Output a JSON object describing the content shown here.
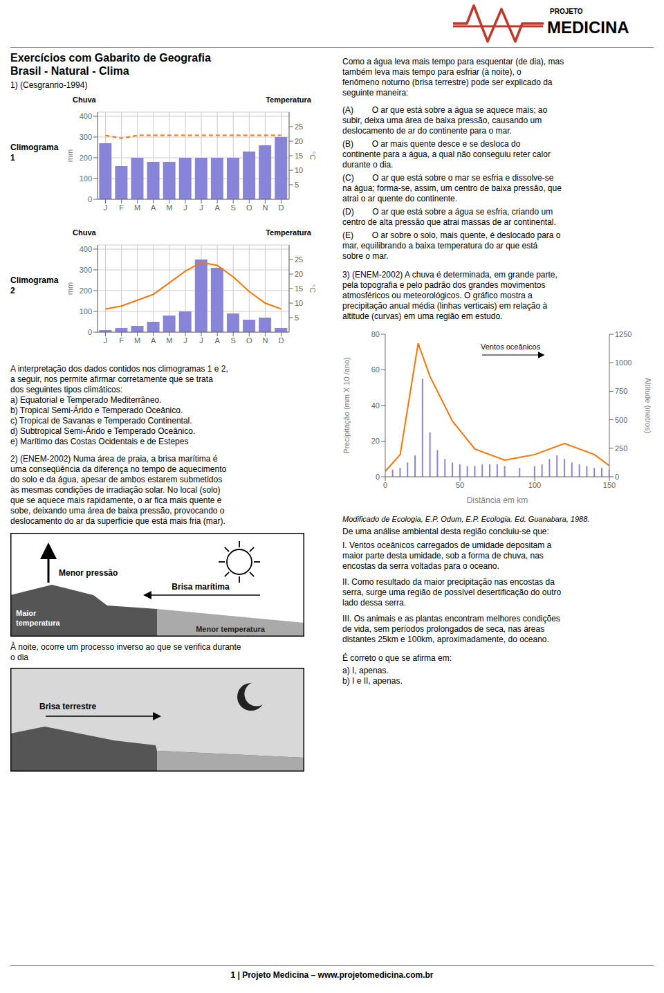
{
  "title": [
    "Exercícios com Gabarito de Geografia",
    "Brasil - Natural - Clima"
  ],
  "chart_data": [
    {
      "type": "bar",
      "title": "Climograma\n1",
      "categories": [
        "J",
        "F",
        "M",
        "A",
        "M",
        "J",
        "J",
        "A",
        "S",
        "O",
        "N",
        "D"
      ],
      "series": [
        {
          "name": "Chuva",
          "type": "bar",
          "values": [
            270,
            160,
            200,
            180,
            180,
            200,
            200,
            200,
            200,
            230,
            260,
            300
          ]
        },
        {
          "name": "Temperatura",
          "type": "line",
          "axis": "y2",
          "line_style": "dashed",
          "values": [
            22,
            21,
            22,
            22,
            22,
            22,
            22,
            22,
            22,
            22,
            22,
            22
          ]
        }
      ],
      "ylabel": "mm",
      "y2label": "°C",
      "ylim": [
        0,
        420
      ],
      "yticks": [
        0,
        100,
        200,
        300,
        400
      ],
      "y2lim": [
        0,
        30
      ],
      "y2ticks": [
        5,
        10,
        15,
        20,
        25
      ],
      "grid": true
    },
    {
      "type": "bar",
      "title": "Climograma\n2",
      "categories": [
        "J",
        "F",
        "M",
        "A",
        "M",
        "J",
        "J",
        "A",
        "S",
        "O",
        "N",
        "D"
      ],
      "series": [
        {
          "name": "Chuva",
          "type": "bar",
          "values": [
            10,
            20,
            30,
            50,
            80,
            100,
            350,
            310,
            90,
            60,
            70,
            20
          ]
        },
        {
          "name": "Temperatura",
          "type": "line",
          "axis": "y2",
          "line_style": "solid",
          "values": [
            8,
            9,
            11,
            13,
            17,
            21,
            24,
            23,
            19,
            14,
            10,
            8
          ]
        }
      ],
      "ylabel": "mm",
      "y2label": "°C",
      "ylim": [
        0,
        420
      ],
      "yticks": [
        0,
        100,
        200,
        300,
        400
      ],
      "y2lim": [
        0,
        30
      ],
      "y2ticks": [
        5,
        10,
        15,
        20,
        25
      ],
      "grid": true
    },
    {
      "type": "bar",
      "series": [
        {
          "type": "bar",
          "x": [
            5,
            10,
            15,
            20,
            25,
            30,
            35,
            40,
            45,
            50,
            55,
            60,
            65,
            70,
            75,
            80,
            90,
            100,
            105,
            110,
            115,
            120,
            125,
            130,
            135,
            140,
            145,
            150
          ],
          "values": [
            4,
            5,
            8,
            12,
            55,
            25,
            15,
            10,
            8,
            7,
            6,
            6,
            7,
            7,
            7,
            6,
            5,
            6,
            7,
            10,
            12,
            10,
            8,
            7,
            6,
            5,
            5,
            4
          ]
        },
        {
          "type": "line",
          "line_style": "solid",
          "x": [
            0,
            10,
            22,
            30,
            45,
            60,
            80,
            100,
            120,
            140,
            150
          ],
          "values": [
            3.12,
            12.48,
            74.88,
            56.16,
            31.2,
            15.6,
            9.36,
            12.48,
            18.72,
            12.48,
            6.24
          ]
        }
      ],
      "xlabel": "Distância em km",
      "ylabel": "Precipitação (mm X 10 /ano)",
      "y2label": "Altitude (metros)",
      "xlim": [
        0,
        150
      ],
      "xticks": [
        0,
        50,
        100,
        150
      ],
      "ylim": [
        0,
        80
      ],
      "yticks": [
        0,
        20,
        40,
        60,
        80
      ],
      "y2lim": [
        0,
        1250
      ],
      "y2ticks": [
        0,
        250,
        500,
        750,
        1000,
        1250
      ],
      "grid": false,
      "annotations": [
        "Ventos oceânicos"
      ]
    }
  ],
  "annotations": [
    [
      "PROJETO",
      "MEDICINA"
    ],
    [
      "1) (Cesgranrio-1994)"
    ],
    [
      "A interpretação dos dados contidos nos climogramas 1 e 2,",
      "a seguir, nos permite afirmar corretamente que se trata",
      "dos seguintes tipos climáticos:",
      "a) Equatorial e Temperado Mediterrâneo.",
      "b) Tropical Semi-Árido e Temperado Oceânico.",
      "c) Tropical de Savanas e Temperado Continental.",
      "d) Subtropical Semi-Árido e Temperado Oceânico.",
      "e) Marítimo das Costas Ocidentais e de Estepes"
    ],
    [
      "2) (ENEM-2002) Numa área de praia, a brisa marítima é",
      "uma conseqüência da diferença no tempo de aquecimento",
      "do solo e da água, apesar de ambos estarem submetidos",
      "às mesmas condições de irradiação solar. No local (solo)",
      "que se aquece mais rapidamente, o ar fica mais quente e",
      "sobe, deixando uma área de baixa pressão, provocando o",
      "deslocamento do ar da superfície que está mais fria (mar)."
    ],
    [
      "Menor pressão",
      "Brisa marítima",
      "Maior\ntemperatura",
      "Menor temperatura"
    ],
    [
      "À noite, ocorre um processo inverso ao que se verifica durante",
      "o dia"
    ],
    [
      "Brisa terrestre"
    ],
    [
      "Como a água leva mais tempo para esquentar (de dia), mas",
      "também leva mais tempo para esfriar (à noite), o",
      "fenômeno noturno (brisa terrestre) pode ser explicado da",
      "seguinte maneira:"
    ],
    [
      "(A)        O ar que está sobre a água se aquece mais; ao",
      "subir, deixa uma área de baixa pressão, causando um",
      "deslocamento de ar do continente para o mar."
    ],
    [
      "(B)        O ar mais quente desce e se desloca do",
      "continente para a água, a qual não conseguiu reter calor",
      "durante o dia."
    ],
    [
      "(C)        O ar que está sobre o mar se esfria e dissolve-se",
      "na água; forma-se, assim, um centro de baixa pressão, que",
      "atrai o ar quente do continente."
    ],
    [
      "(D)        O ar que está sobre a água se esfria, criando um",
      "centro de alta pressão que atrai massas de ar continental."
    ],
    [
      "(E)        O ar sobre o solo, mais quente, é deslocado para o",
      "mar, equilibrando a baixa temperatura do ar que está",
      "sobre o mar."
    ],
    [
      "3) (ENEM-2002) A chuva é determinada, em grande parte,",
      "pela topografia e pelo padrão dos grandes movimentos",
      "atmosféricos ou meteorológicos. O gráfico mostra a",
      "precipitação anual média (linhas verticais) em relação à",
      "altitude (curvas) em uma região em estudo."
    ],
    [
      "Modificado de Ecologia, E.P. Odum, E.P. Ecologia. Ed. Guanabara, 1988."
    ],
    [
      "De uma análise ambiental desta região concluiu-se que:"
    ],
    [
      "I. Ventos oceânicos carregados de umidade depositam a",
      "maior parte desta umidade, sob a forma de chuva, nas",
      "encostas da serra voltadas para o oceano."
    ],
    [
      "II. Como resultado da maior precipitação nas encostas da",
      "serra, surge uma região de possível desertificação do outro",
      "lado dessa serra."
    ],
    [
      "III. Os animais e as plantas encontram melhores condições",
      "de vida, sem períodos prolongados de seca, nas áreas",
      "distantes 25km e 100km, aproximadamente, do oceano."
    ],
    [
      "É correto o que se afirma em:",
      "a) I, apenas.",
      "b) I e II, apenas."
    ],
    [
      "1 | Projeto Medicina – www.projetomedicina.com.br"
    ]
  ]
}
